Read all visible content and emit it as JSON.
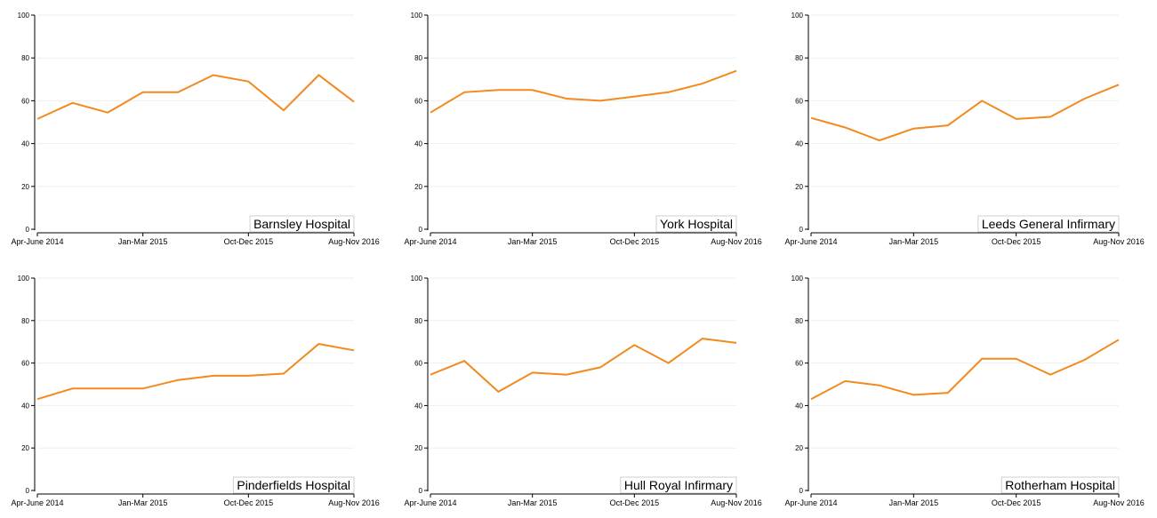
{
  "colors": {
    "series": "#f28a1e",
    "grid": "#eef0f0",
    "axis": "#000000"
  },
  "chart_data": [
    {
      "type": "line",
      "label": "Barnsley Hospital",
      "x": [
        "Apr-June 2014",
        "",
        "",
        "Jan-Mar 2015",
        "",
        "",
        "Oct-Dec 2015",
        "",
        "",
        "Aug-Nov 2016"
      ],
      "x_tick_labels": [
        "Apr-June 2014",
        "Jan-Mar 2015",
        "Oct-Dec 2015",
        "Aug-Nov 2016"
      ],
      "values": [
        51.5,
        59,
        54.5,
        64,
        64,
        72,
        69,
        55.5,
        72,
        59.5
      ],
      "ylim": [
        0,
        100
      ],
      "y_ticks": [
        0,
        20,
        40,
        60,
        80,
        100
      ],
      "grid": true
    },
    {
      "type": "line",
      "label": "York Hospital",
      "x": [
        "Apr-June 2014",
        "",
        "",
        "Jan-Mar 2015",
        "",
        "",
        "Oct-Dec 2015",
        "",
        "",
        "Aug-Nov 2016"
      ],
      "x_tick_labels": [
        "Apr-June 2014",
        "Jan-Mar 2015",
        "Oct-Dec 2015",
        "Aug-Nov 2016"
      ],
      "values": [
        54.5,
        64,
        65,
        65,
        61,
        60,
        62,
        64,
        68,
        74
      ],
      "ylim": [
        0,
        100
      ],
      "y_ticks": [
        0,
        20,
        40,
        60,
        80,
        100
      ],
      "grid": true
    },
    {
      "type": "line",
      "label": "Leeds General Infirmary",
      "x": [
        "Apr-June 2014",
        "",
        "",
        "Jan-Mar 2015",
        "",
        "",
        "Oct-Dec 2015",
        "",
        "",
        "Aug-Nov 2016"
      ],
      "x_tick_labels": [
        "Apr-June 2014",
        "Jan-Mar 2015",
        "Oct-Dec 2015",
        "Aug-Nov 2016"
      ],
      "values": [
        52,
        47.5,
        41.5,
        47,
        48.5,
        60,
        51.5,
        52.5,
        61,
        67.5
      ],
      "ylim": [
        0,
        100
      ],
      "y_ticks": [
        0,
        20,
        40,
        60,
        80,
        100
      ],
      "grid": true
    },
    {
      "type": "line",
      "label": "Pinderfields Hospital",
      "x": [
        "Apr-June 2014",
        "",
        "",
        "Jan-Mar 2015",
        "",
        "",
        "Oct-Dec 2015",
        "",
        "",
        "Aug-Nov 2016"
      ],
      "x_tick_labels": [
        "Apr-June 2014",
        "Jan-Mar 2015",
        "Oct-Dec 2015",
        "Aug-Nov 2016"
      ],
      "values": [
        43,
        48,
        48,
        48,
        52,
        54,
        54,
        55,
        69,
        66
      ],
      "ylim": [
        0,
        100
      ],
      "y_ticks": [
        0,
        20,
        40,
        60,
        80,
        100
      ],
      "grid": true
    },
    {
      "type": "line",
      "label": "Hull Royal Infirmary",
      "x": [
        "Apr-June 2014",
        "",
        "",
        "Jan-Mar 2015",
        "",
        "",
        "Oct-Dec 2015",
        "",
        "",
        "Aug-Nov 2016"
      ],
      "x_tick_labels": [
        "Apr-June 2014",
        "Jan-Mar 2015",
        "Oct-Dec 2015",
        "Aug-Nov 2016"
      ],
      "values": [
        54.5,
        61,
        46.5,
        55.5,
        54.5,
        58,
        68.5,
        60,
        71.5,
        69.5
      ],
      "ylim": [
        0,
        100
      ],
      "y_ticks": [
        0,
        20,
        40,
        60,
        80,
        100
      ],
      "grid": true
    },
    {
      "type": "line",
      "label": "Rotherham Hospital",
      "x": [
        "Apr-June 2014",
        "",
        "",
        "Jan-Mar 2015",
        "",
        "",
        "Oct-Dec 2015",
        "",
        "",
        "Aug-Nov 2016"
      ],
      "x_tick_labels": [
        "Apr-June 2014",
        "Jan-Mar 2015",
        "Oct-Dec 2015",
        "Aug-Nov 2016"
      ],
      "values": [
        43,
        51.5,
        49.5,
        45,
        46,
        62,
        62,
        54.5,
        61.5,
        71
      ],
      "ylim": [
        0,
        100
      ],
      "y_ticks": [
        0,
        20,
        40,
        60,
        80,
        100
      ],
      "grid": true
    }
  ]
}
